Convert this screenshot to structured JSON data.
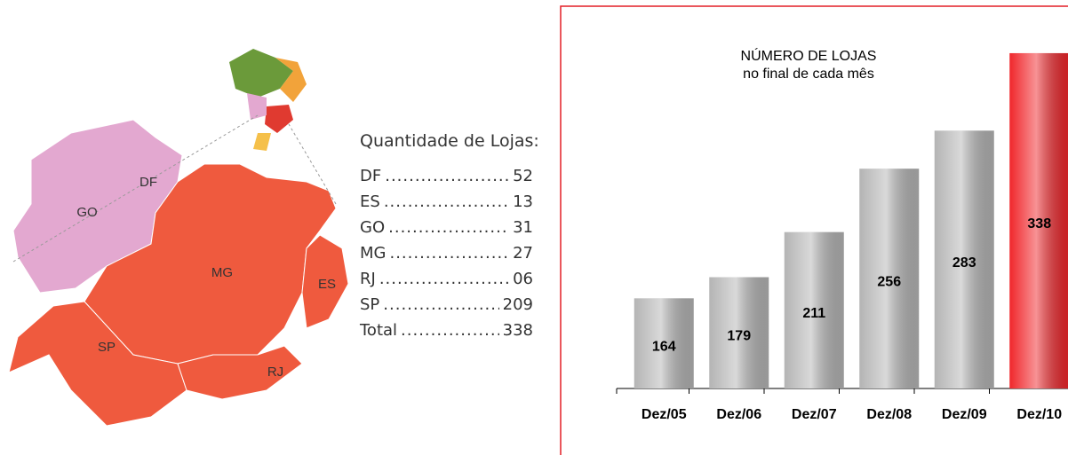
{
  "map": {
    "labels": [
      "GO",
      "DF",
      "MG",
      "ES",
      "SP",
      "RJ"
    ]
  },
  "list": {
    "heading": "Quantidade de Lojas:",
    "rows": [
      [
        "DF",
        "52"
      ],
      [
        "ES",
        "13"
      ],
      [
        "GO",
        "31"
      ],
      [
        "MG",
        "27"
      ],
      [
        "RJ",
        "06"
      ],
      [
        "SP",
        "209"
      ],
      [
        "Total",
        "338"
      ]
    ]
  },
  "chart_data": {
    "type": "bar",
    "title": "NÚMERO DE LOJAS",
    "subtitle": "no final de cada mês",
    "categories": [
      "Dez/05",
      "Dez/06",
      "Dez/07",
      "Dez/08",
      "Dez/09",
      "Dez/10"
    ],
    "values": [
      164,
      179,
      211,
      256,
      283,
      338
    ],
    "colors": [
      "#b4b4b4",
      "#b4b4b4",
      "#b4b4b4",
      "#b4b4b4",
      "#b4b4b4",
      "#f0262b"
    ],
    "ylim": [
      100,
      360
    ]
  }
}
